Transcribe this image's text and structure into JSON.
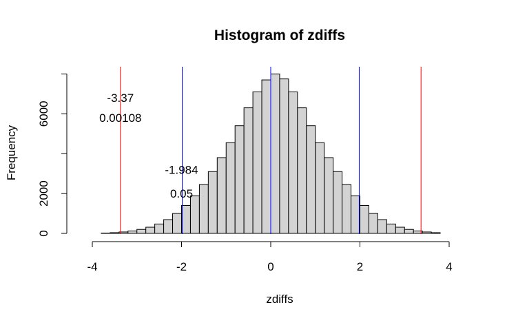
{
  "chart_data": {
    "type": "bar",
    "title": "Histogram of zdiffs",
    "xlabel": "zdiffs",
    "ylabel": "Frequency",
    "xlim": [
      -4.2,
      4.6
    ],
    "ylim": [
      0,
      8200
    ],
    "x_ticks": [
      -4,
      -2,
      0,
      2,
      4
    ],
    "x_tick_labels": [
      "-4",
      "-2",
      "0",
      "2",
      "4"
    ],
    "y_ticks": [
      0,
      2000,
      6000
    ],
    "y_tick_labels": [
      "0",
      "2000",
      "6000"
    ],
    "y_ticks_unlabeled": [
      4000,
      8000
    ],
    "bin_width": 0.2,
    "bins": [
      [
        -3.8,
        -3.6,
        15
      ],
      [
        -3.6,
        -3.4,
        35
      ],
      [
        -3.4,
        -3.2,
        70
      ],
      [
        -3.2,
        -3.0,
        120
      ],
      [
        -3.0,
        -2.8,
        200
      ],
      [
        -2.8,
        -2.6,
        310
      ],
      [
        -2.6,
        -2.4,
        470
      ],
      [
        -2.4,
        -2.2,
        690
      ],
      [
        -2.2,
        -2.0,
        1000
      ],
      [
        -2.0,
        -1.8,
        1400
      ],
      [
        -1.8,
        -1.6,
        1880
      ],
      [
        -1.6,
        -1.4,
        2450
      ],
      [
        -1.4,
        -1.2,
        3100
      ],
      [
        -1.2,
        -1.0,
        3800
      ],
      [
        -1.0,
        -0.8,
        4550
      ],
      [
        -0.8,
        -0.6,
        5400
      ],
      [
        -0.6,
        -0.4,
        6300
      ],
      [
        -0.4,
        -0.2,
        7100
      ],
      [
        -0.2,
        0.0,
        7700
      ],
      [
        0.0,
        0.2,
        8000
      ],
      [
        0.2,
        0.4,
        7750
      ],
      [
        0.4,
        0.6,
        7100
      ],
      [
        0.6,
        0.8,
        6300
      ],
      [
        0.8,
        1.0,
        5400
      ],
      [
        1.0,
        1.2,
        4550
      ],
      [
        1.2,
        1.4,
        3800
      ],
      [
        1.4,
        1.6,
        3100
      ],
      [
        1.6,
        1.8,
        2450
      ],
      [
        1.8,
        2.0,
        1880
      ],
      [
        2.0,
        2.2,
        1400
      ],
      [
        2.2,
        2.4,
        1000
      ],
      [
        2.4,
        2.6,
        690
      ],
      [
        2.6,
        2.8,
        470
      ],
      [
        2.8,
        3.0,
        310
      ],
      [
        3.0,
        3.2,
        200
      ],
      [
        3.2,
        3.4,
        120
      ],
      [
        3.4,
        3.6,
        70
      ],
      [
        3.6,
        3.8,
        35
      ]
    ],
    "bar_color": "#d3d3d3",
    "vlines": [
      {
        "x": -3.37,
        "color": "#ff0000"
      },
      {
        "x": 3.37,
        "color": "#ff0000"
      },
      {
        "x": -1.984,
        "color": "#0000ff"
      },
      {
        "x": 1.984,
        "color": "#0000ff"
      },
      {
        "x": 0,
        "color": "#0000ff"
      }
    ],
    "annotations": [
      {
        "text": "-3.37",
        "x": -3.37,
        "y": 6800
      },
      {
        "text": "0.00108",
        "x": -3.37,
        "y": 5800
      },
      {
        "text": "-1.984",
        "x": -2.0,
        "y": 3200
      },
      {
        "text": "0.05",
        "x": -2.0,
        "y": 2000
      }
    ]
  }
}
